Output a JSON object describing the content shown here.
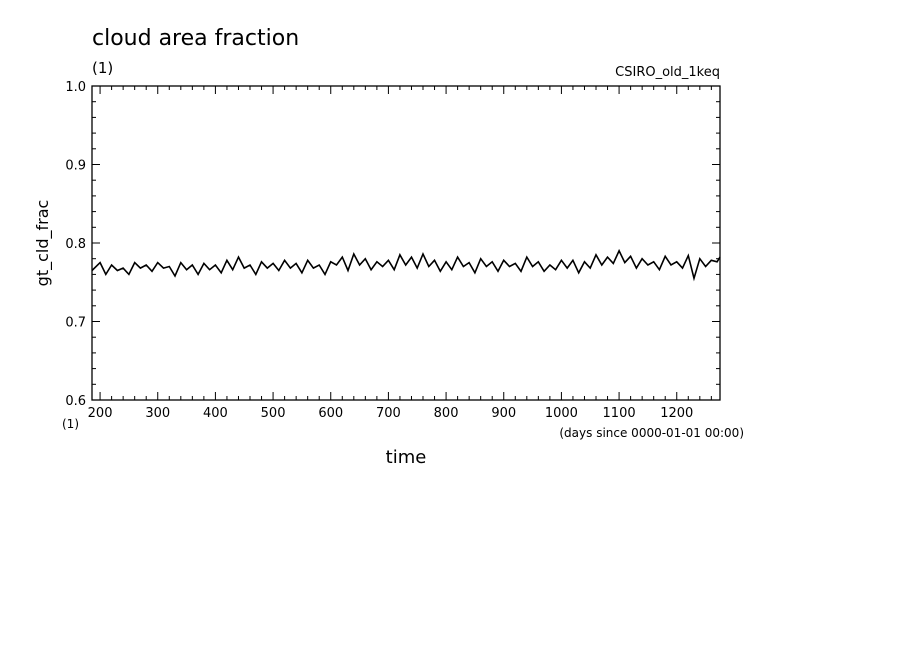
{
  "chart_data": {
    "type": "line",
    "title": "cloud area fraction",
    "units_top": "(1)",
    "experiment": "CSIRO_old_1keq",
    "ylabel": "gt_cld_frac",
    "xlabel": "time",
    "x_units": "(days since 0000-01-01 00:00)",
    "y_units_bottom": "(1)",
    "xlim": [
      186,
      1275
    ],
    "ylim": [
      0.6,
      1.0
    ],
    "xticks": [
      200,
      300,
      400,
      500,
      600,
      700,
      800,
      900,
      1000,
      1100,
      1200
    ],
    "xtick_labels": [
      "200",
      "300",
      "400",
      "500",
      "600",
      "700",
      "800",
      "900",
      "1000",
      "1100",
      "1200"
    ],
    "yticks": [
      0.6,
      0.7,
      0.8,
      0.9,
      1.0
    ],
    "ytick_labels": [
      "0.6",
      "0.7",
      "0.8",
      "0.9",
      "1.0"
    ],
    "line_color": "#000000",
    "grid": false,
    "series": [
      {
        "x": [
          186,
          200,
          210,
          220,
          230,
          240,
          250,
          260,
          270,
          280,
          290,
          300,
          310,
          320,
          330,
          340,
          350,
          360,
          370,
          380,
          390,
          400,
          410,
          420,
          430,
          440,
          450,
          460,
          470,
          480,
          490,
          500,
          510,
          520,
          530,
          540,
          550,
          560,
          570,
          580,
          590,
          600,
          610,
          620,
          630,
          640,
          650,
          660,
          670,
          680,
          690,
          700,
          710,
          720,
          730,
          740,
          750,
          760,
          770,
          780,
          790,
          800,
          810,
          820,
          830,
          840,
          850,
          860,
          870,
          880,
          890,
          900,
          910,
          920,
          930,
          940,
          950,
          960,
          970,
          980,
          990,
          1000,
          1010,
          1020,
          1030,
          1040,
          1050,
          1060,
          1070,
          1080,
          1090,
          1100,
          1110,
          1120,
          1130,
          1140,
          1150,
          1160,
          1170,
          1180,
          1190,
          1200,
          1210,
          1220,
          1230,
          1240,
          1250,
          1260,
          1270,
          1275
        ],
        "y": [
          0.765,
          0.775,
          0.76,
          0.772,
          0.765,
          0.768,
          0.76,
          0.775,
          0.768,
          0.772,
          0.764,
          0.775,
          0.768,
          0.77,
          0.758,
          0.775,
          0.766,
          0.772,
          0.76,
          0.774,
          0.766,
          0.772,
          0.762,
          0.778,
          0.766,
          0.782,
          0.768,
          0.772,
          0.76,
          0.776,
          0.768,
          0.774,
          0.765,
          0.778,
          0.768,
          0.774,
          0.762,
          0.778,
          0.768,
          0.772,
          0.76,
          0.776,
          0.772,
          0.782,
          0.765,
          0.786,
          0.772,
          0.78,
          0.766,
          0.776,
          0.77,
          0.778,
          0.766,
          0.785,
          0.772,
          0.782,
          0.768,
          0.786,
          0.77,
          0.778,
          0.764,
          0.776,
          0.766,
          0.782,
          0.77,
          0.775,
          0.762,
          0.78,
          0.77,
          0.776,
          0.764,
          0.778,
          0.77,
          0.774,
          0.764,
          0.782,
          0.77,
          0.776,
          0.764,
          0.772,
          0.766,
          0.778,
          0.768,
          0.778,
          0.762,
          0.776,
          0.768,
          0.785,
          0.772,
          0.782,
          0.774,
          0.79,
          0.775,
          0.783,
          0.768,
          0.78,
          0.772,
          0.776,
          0.766,
          0.783,
          0.772,
          0.776,
          0.768,
          0.784,
          0.755,
          0.78,
          0.77,
          0.778,
          0.776,
          0.782
        ]
      }
    ]
  }
}
